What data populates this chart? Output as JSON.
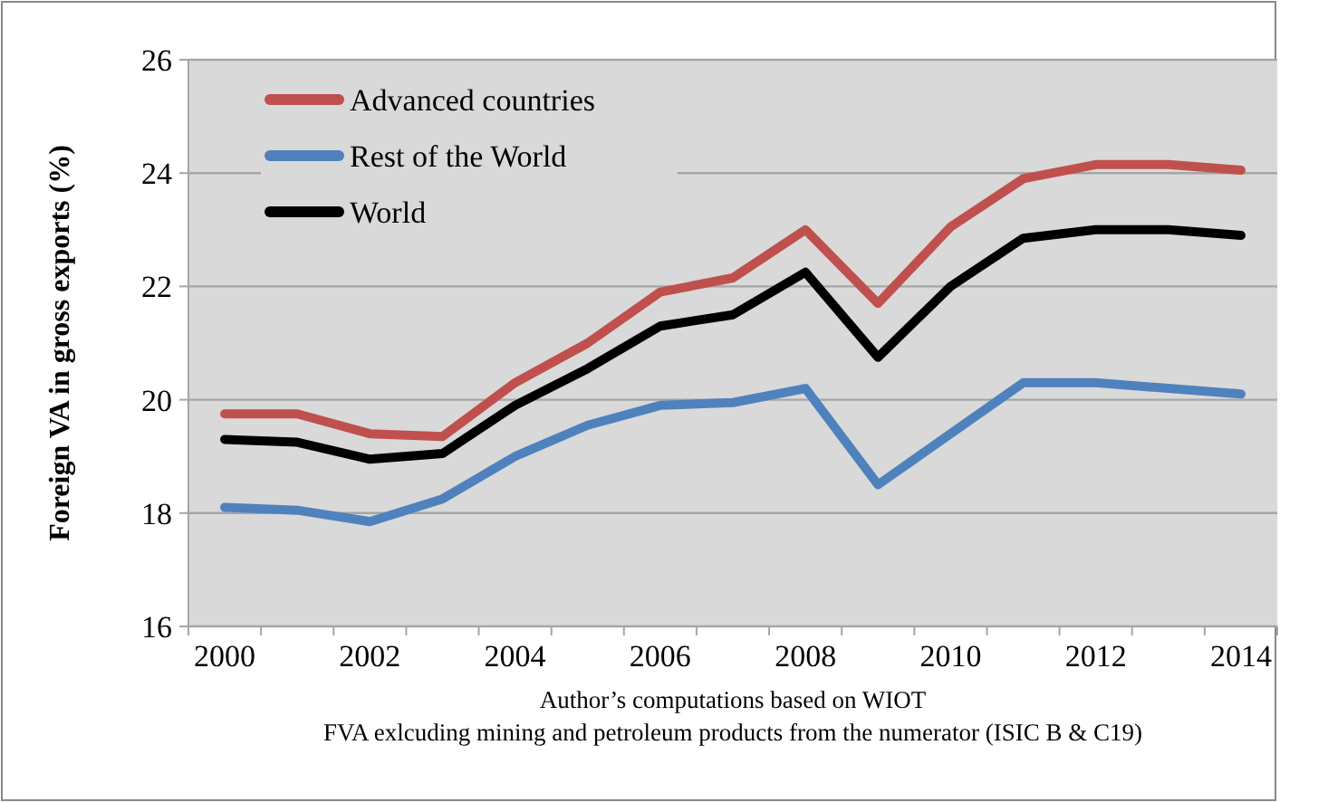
{
  "chart_data": {
    "type": "line",
    "ylabel": "Foreign VA in gross exports  (%)",
    "categories": [
      "2000",
      null,
      "2002",
      null,
      "2004",
      null,
      "2006",
      null,
      "2008",
      null,
      "2010",
      null,
      "2012",
      null,
      "2014"
    ],
    "series": [
      {
        "name": "Advanced countries",
        "color": "#c0504d",
        "values": [
          19.75,
          19.75,
          19.4,
          19.35,
          20.3,
          21.0,
          21.9,
          22.15,
          23.0,
          21.7,
          23.05,
          23.9,
          24.15,
          24.15,
          24.05
        ]
      },
      {
        "name": "Rest of the World",
        "color": "#4f81bd",
        "values": [
          18.1,
          18.05,
          17.85,
          18.25,
          19.0,
          19.55,
          19.9,
          19.95,
          20.2,
          18.5,
          19.4,
          20.3,
          20.3,
          20.2,
          20.1
        ]
      },
      {
        "name": "World",
        "color": "#000000",
        "values": [
          19.3,
          19.25,
          18.95,
          19.05,
          19.9,
          20.55,
          21.3,
          21.5,
          22.25,
          20.75,
          22.0,
          22.85,
          23.0,
          23.0,
          22.9
        ]
      }
    ],
    "ylim": [
      16,
      26
    ],
    "yticks": [
      16,
      18,
      20,
      22,
      24,
      26
    ],
    "grid": "y",
    "legend": "top left",
    "annotations": [
      "Author’s computations based on WIOT",
      "FVA exlcuding mining and petroleum products from the numerator (ISIC B & C19)"
    ]
  }
}
